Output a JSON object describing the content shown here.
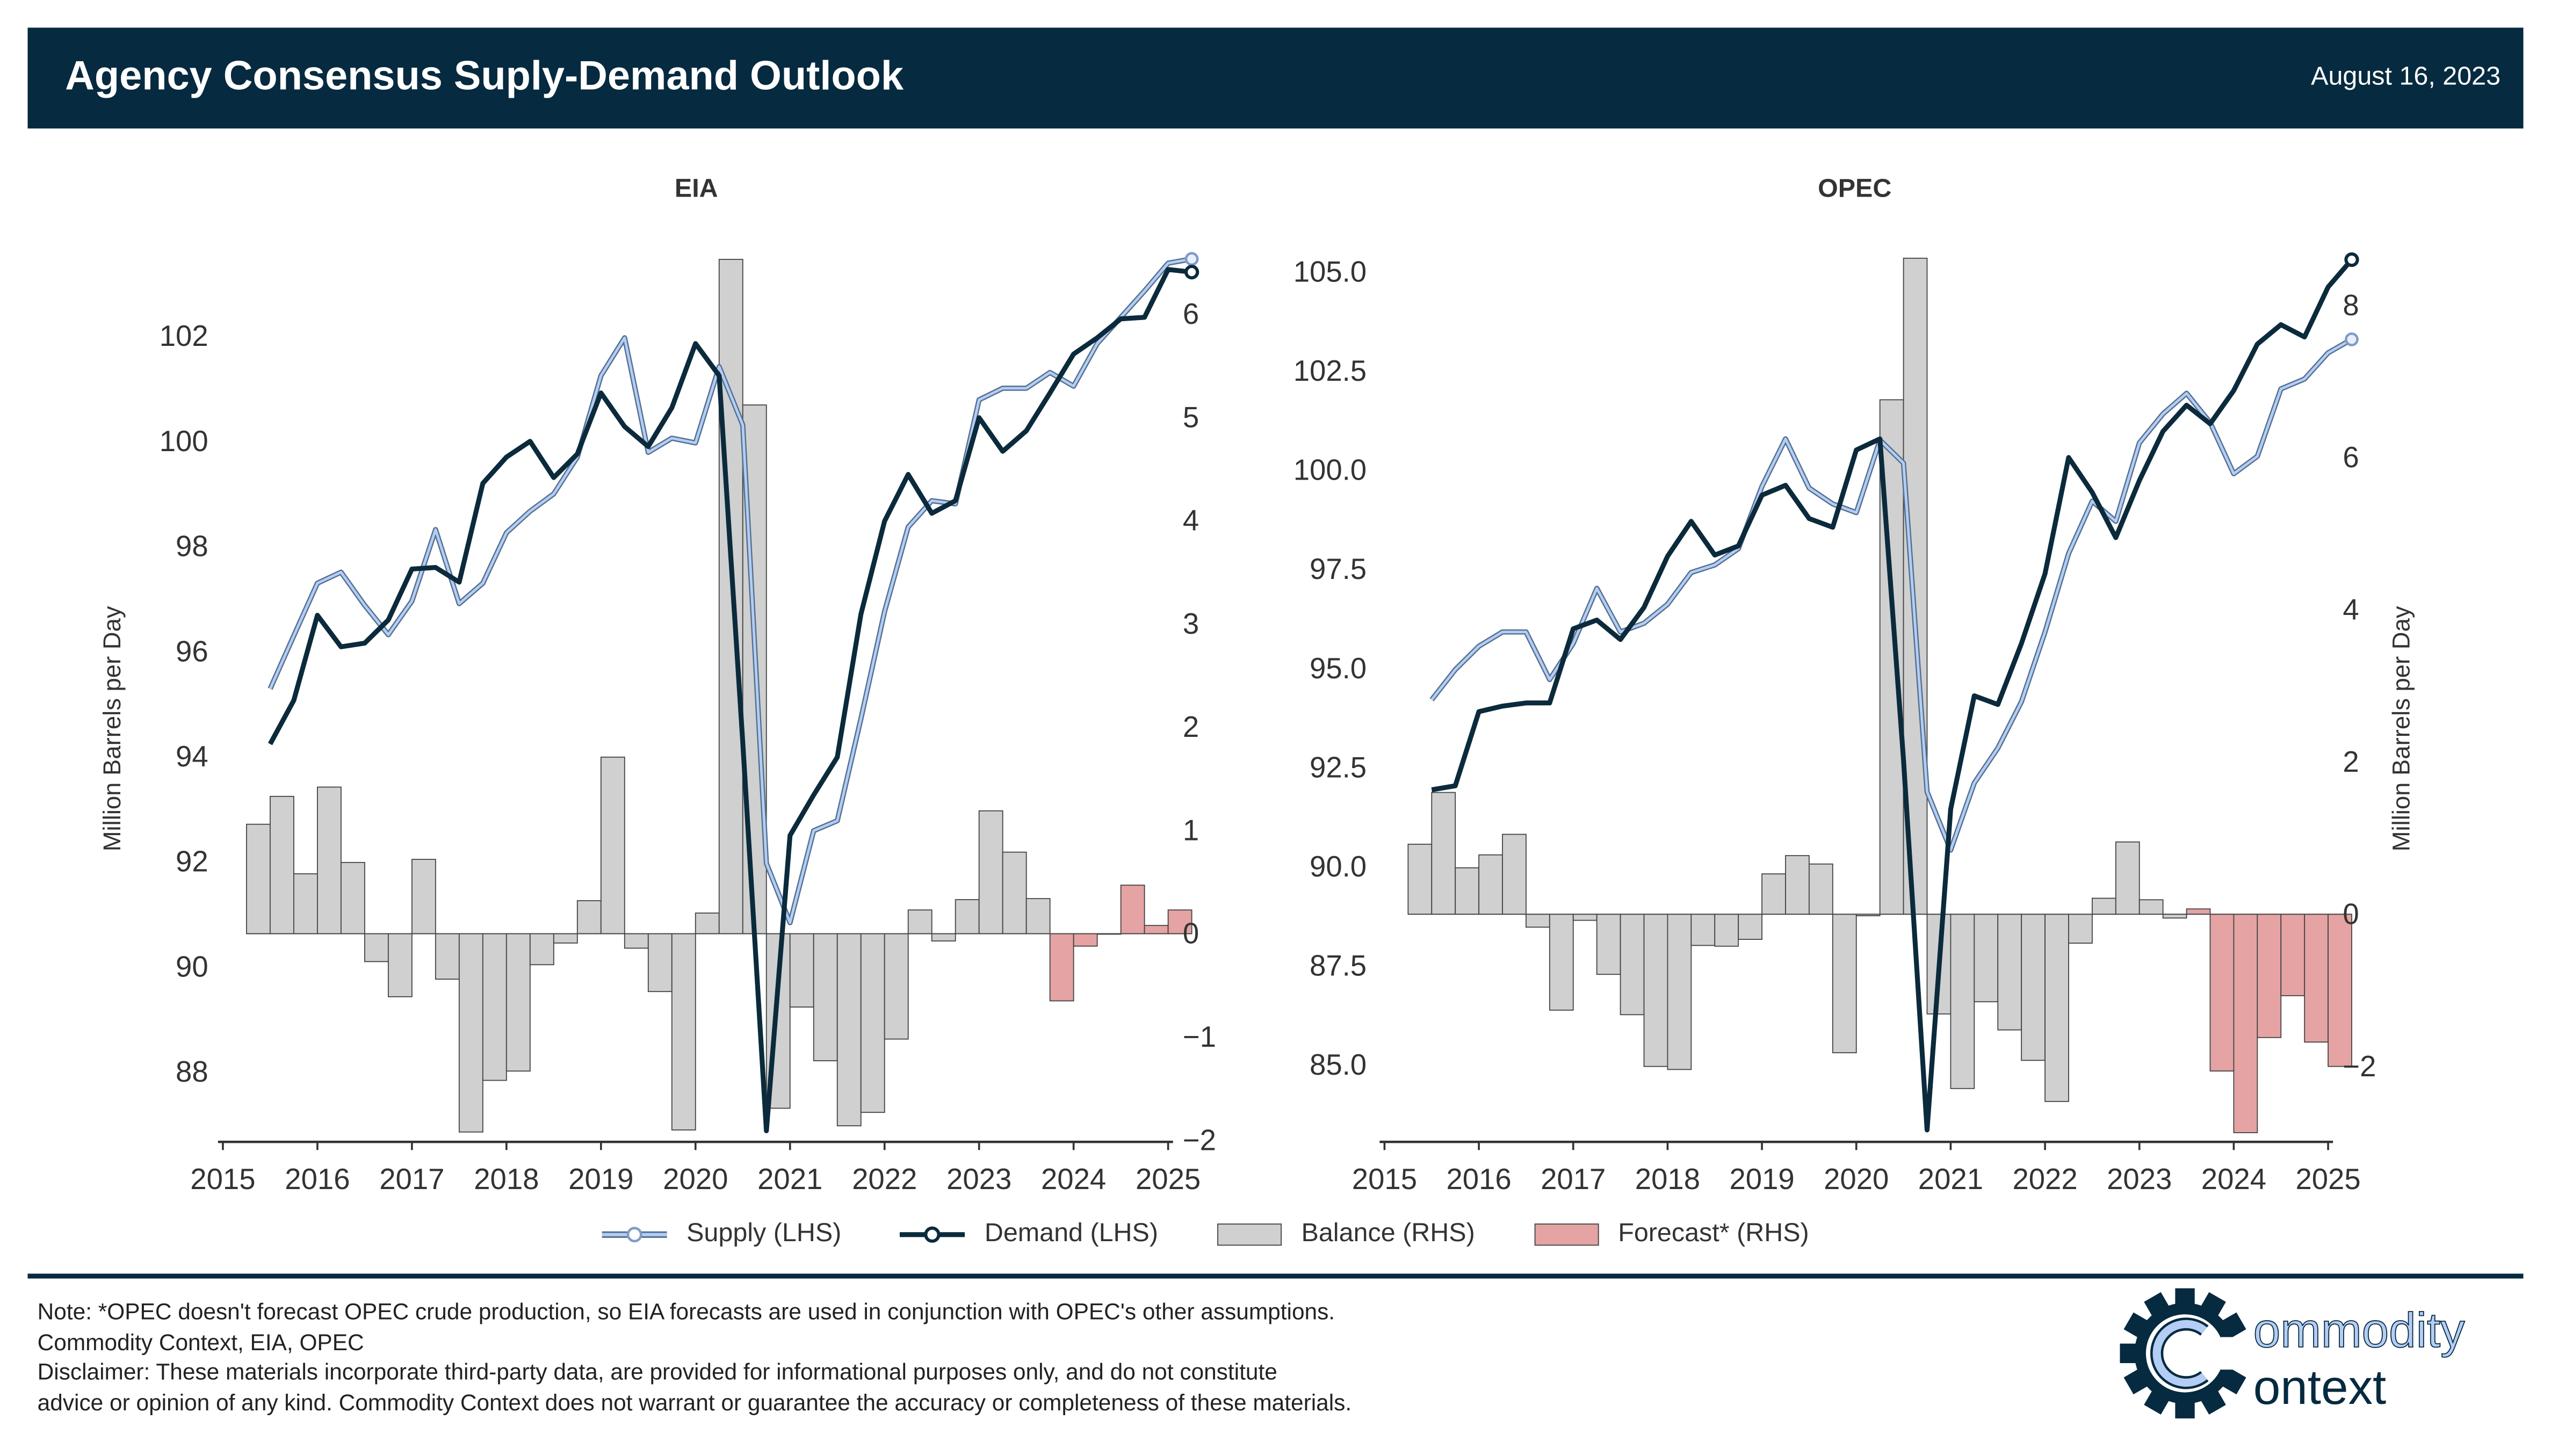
{
  "header": {
    "title": "Agency Consensus Suply-Demand Outlook",
    "date": "August 16, 2023"
  },
  "colors": {
    "header": "#062a3f",
    "supply": "#b4cdf5",
    "demand": "#0b2a3c",
    "balance": "#d0d0d0",
    "forecast": "#e5a3a3"
  },
  "legend": [
    {
      "label": "Supply (LHS)",
      "icon": "line-circle-light"
    },
    {
      "label": "Demand (LHS)",
      "icon": "line-circle-dark"
    },
    {
      "label": "Balance (RHS)",
      "icon": "grey-box"
    },
    {
      "label": "Forecast* (RHS)",
      "icon": "pink-box"
    }
  ],
  "chart_data": [
    {
      "type": "line+bar",
      "title": "EIA",
      "ylabel": "Million Barrels per Day",
      "ylabel_side": "left",
      "x_ticks": [
        "2015",
        "2016",
        "2017",
        "2018",
        "2019",
        "2020",
        "2021",
        "2022",
        "2023",
        "2024",
        "2025"
      ],
      "xlim": [
        2015,
        2025
      ],
      "ylim_left": [
        86.7,
        103.6
      ],
      "ylim_right": [
        -2.0,
        6.6
      ],
      "left_ticks": [
        88,
        90,
        92,
        94,
        96,
        98,
        100,
        102
      ],
      "left_tick_labels": [
        "88",
        "90",
        "92",
        "94",
        "96",
        "98",
        "100",
        "102"
      ],
      "right_ticks": [
        -2,
        -1,
        0,
        1,
        2,
        3,
        4,
        5,
        6
      ],
      "right_tick_labels": [
        "−2",
        "−1",
        "0",
        "1",
        "2",
        "3",
        "4",
        "5",
        "6"
      ],
      "quarters": [
        "2015Q2",
        "2015Q3",
        "2015Q4",
        "2016Q1",
        "2016Q2",
        "2016Q3",
        "2016Q4",
        "2017Q1",
        "2017Q2",
        "2017Q3",
        "2017Q4",
        "2018Q1",
        "2018Q2",
        "2018Q3",
        "2018Q4",
        "2019Q1",
        "2019Q2",
        "2019Q3",
        "2019Q4",
        "2020Q1",
        "2020Q2",
        "2020Q3",
        "2020Q4",
        "2021Q1",
        "2021Q2",
        "2021Q3",
        "2021Q4",
        "2022Q1",
        "2022Q2",
        "2022Q3",
        "2022Q4",
        "2023Q1",
        "2023Q2",
        "2023Q3",
        "2023Q4",
        "2024Q1",
        "2024Q2",
        "2024Q3",
        "2024Q4",
        "2025Q1"
      ],
      "forecast_from": "2023Q4",
      "series": [
        {
          "name": "Supply (LHS)",
          "axis": "left",
          "values": [
            95.29,
            96.3,
            97.3,
            97.51,
            96.88,
            96.32,
            96.96,
            98.32,
            96.91,
            97.3,
            98.26,
            98.67,
            99.0,
            99.7,
            101.25,
            101.97,
            99.79,
            100.06,
            99.97,
            101.42,
            100.31,
            91.97,
            90.84,
            92.59,
            92.78,
            94.72,
            96.76,
            98.37,
            98.87,
            98.81,
            100.79,
            101.01,
            101.01,
            101.31,
            101.05,
            101.86,
            102.36,
            102.86,
            103.39,
            103.47
          ]
        },
        {
          "name": "Demand (LHS)",
          "axis": "left",
          "values": [
            94.24,
            95.07,
            96.69,
            96.09,
            96.16,
            96.6,
            97.57,
            97.6,
            97.32,
            99.2,
            99.7,
            100.0,
            99.31,
            99.76,
            100.92,
            100.28,
            99.9,
            100.64,
            101.86,
            101.25,
            94.27,
            86.88,
            92.5,
            93.27,
            93.99,
            96.71,
            98.48,
            99.37,
            98.63,
            98.87,
            100.45,
            99.81,
            100.2,
            100.92,
            101.66,
            101.97,
            102.33,
            102.36,
            103.27,
            103.22
          ]
        },
        {
          "name": "Balance (RHS)",
          "axis": "right",
          "values": [
            1.06,
            1.33,
            0.58,
            1.42,
            0.69,
            -0.27,
            -0.61,
            0.72,
            -0.44,
            -1.92,
            -1.42,
            -1.33,
            -0.3,
            -0.09,
            0.32,
            1.71,
            -0.14,
            -0.56,
            -1.9,
            0.2,
            6.53,
            5.12,
            -1.69,
            -0.71,
            -1.23,
            -1.86,
            -1.73,
            -1.02,
            0.23,
            -0.07,
            0.33,
            1.19,
            0.79,
            0.34,
            -0.65,
            -0.12,
            0.0,
            0.47,
            0.08,
            0.23
          ]
        }
      ]
    },
    {
      "type": "line+bar",
      "title": "OPEC",
      "ylabel": "Million Barrels per Day",
      "ylabel_side": "right",
      "x_ticks": [
        "2015",
        "2016",
        "2017",
        "2018",
        "2019",
        "2020",
        "2021",
        "2022",
        "2023",
        "2024",
        "2025"
      ],
      "xlim": [
        2015,
        2025
      ],
      "ylim_left": [
        83.1,
        105.5
      ],
      "ylim_right": [
        -2.97,
        8.7
      ],
      "left_ticks": [
        85,
        87.5,
        90,
        92.5,
        95,
        97.5,
        100,
        102.5,
        105
      ],
      "left_tick_labels": [
        "85.0",
        "87.5",
        "90.0",
        "92.5",
        "95.0",
        "97.5",
        "100.0",
        "102.5",
        "105.0"
      ],
      "right_ticks": [
        -2,
        0,
        2,
        4,
        6,
        8
      ],
      "right_tick_labels": [
        "−2",
        "0",
        "2",
        "4",
        "6",
        "8"
      ],
      "quarters": [
        "2015Q2",
        "2015Q3",
        "2015Q4",
        "2016Q1",
        "2016Q2",
        "2016Q3",
        "2016Q4",
        "2017Q1",
        "2017Q2",
        "2017Q3",
        "2017Q4",
        "2018Q1",
        "2018Q2",
        "2018Q3",
        "2018Q4",
        "2019Q1",
        "2019Q2",
        "2019Q3",
        "2019Q4",
        "2020Q1",
        "2020Q2",
        "2020Q3",
        "2020Q4",
        "2021Q1",
        "2021Q2",
        "2021Q3",
        "2021Q4",
        "2022Q1",
        "2022Q2",
        "2022Q3",
        "2022Q4",
        "2023Q1",
        "2023Q2",
        "2023Q3",
        "2023Q4",
        "2024Q1",
        "2024Q2",
        "2024Q3",
        "2024Q4",
        "2025Q1"
      ],
      "forecast_from": "2023Q3",
      "series": [
        {
          "name": "Supply (LHS)",
          "axis": "left",
          "values": [
            94.21,
            94.97,
            95.56,
            95.92,
            95.92,
            94.72,
            95.63,
            97.02,
            95.92,
            96.14,
            96.62,
            97.42,
            97.61,
            98.02,
            99.59,
            100.79,
            99.55,
            99.15,
            98.93,
            100.76,
            100.18,
            91.89,
            90.42,
            92.11,
            92.99,
            94.16,
            95.92,
            97.9,
            99.22,
            98.71,
            100.69,
            101.42,
            101.94,
            101.2,
            99.91,
            100.35,
            102.05,
            102.3,
            102.96,
            103.3
          ]
        },
        {
          "name": "Demand (LHS)",
          "axis": "left",
          "values": [
            91.94,
            92.04,
            93.91,
            94.05,
            94.13,
            94.13,
            96.0,
            96.22,
            95.73,
            96.54,
            97.83,
            98.71,
            97.86,
            98.09,
            99.37,
            99.62,
            98.78,
            98.56,
            100.51,
            100.79,
            92.7,
            83.36,
            91.45,
            94.31,
            94.09,
            95.63,
            97.39,
            100.32,
            99.44,
            98.3,
            99.74,
            100.98,
            101.64,
            101.17,
            102.01,
            103.18,
            103.67,
            103.36,
            104.62,
            105.31
          ]
        },
        {
          "name": "Balance (RHS)",
          "axis": "right",
          "values": [
            0.92,
            1.6,
            0.61,
            0.78,
            1.05,
            -0.17,
            -1.26,
            -0.08,
            -0.79,
            -1.32,
            -2.0,
            -2.04,
            -0.41,
            -0.42,
            -0.33,
            0.53,
            0.77,
            0.66,
            -1.82,
            -0.02,
            6.76,
            8.62,
            -1.31,
            -2.29,
            -1.15,
            -1.52,
            -1.92,
            -2.46,
            -0.38,
            0.21,
            0.95,
            0.19,
            -0.05,
            0.07,
            -2.06,
            -2.87,
            -1.62,
            -1.07,
            -1.68,
            -2.0
          ]
        }
      ]
    }
  ],
  "footer": {
    "notes": [
      "Note: *OPEC doesn't forecast OPEC crude production, so EIA forecasts are used in conjunction with OPEC's other assumptions.",
      "Commodity Context, EIA, OPEC",
      "Disclaimer: These materials incorporate third-party data, are provided for informational purposes only, and do not constitute",
      "advice or opinion of any kind. Commodity Context does not warrant or guarantee the accuracy or completeness of these materials."
    ],
    "logo": {
      "line1": "ommodity",
      "line2": "ontext"
    }
  }
}
